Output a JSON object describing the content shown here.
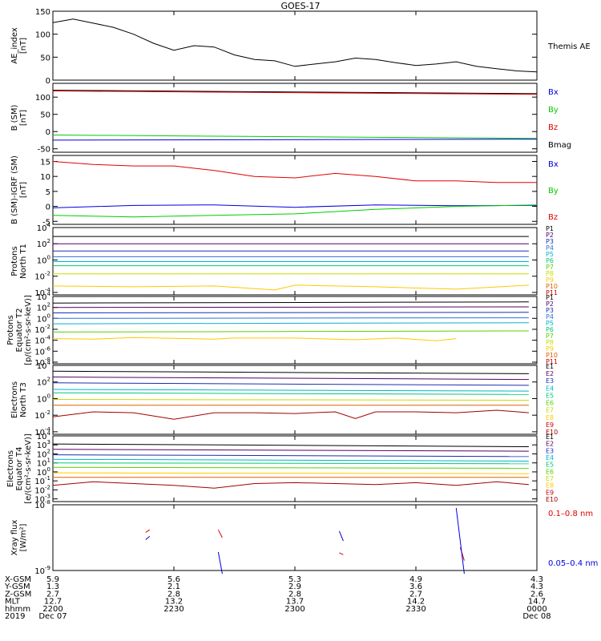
{
  "title": "GOES-17",
  "colors": {
    "black": "#000000",
    "red": "#e00000",
    "green": "#00cc00",
    "blue": "#0000dd",
    "p1": "#000000",
    "p2": "#55006a",
    "p3": "#1b2fb0",
    "p4": "#2f6fdc",
    "p5": "#00b4c8",
    "p6": "#00c878",
    "p7": "#55d200",
    "p8": "#c8dc00",
    "p9": "#ffc800",
    "p10": "#e06000",
    "p11": "#c80000",
    "e10": "#a00000"
  },
  "time_axis": {
    "start_hhmm": "2200",
    "end_hhmm": "0000",
    "rows": [
      {
        "label": "X-GSM",
        "values": [
          "5.9",
          "5.6",
          "5.3",
          "4.9",
          "4.3"
        ]
      },
      {
        "label": "Y-GSM",
        "values": [
          "1.3",
          "2.1",
          "2.9",
          "3.6",
          "4.3"
        ]
      },
      {
        "label": "Z-GSM",
        "values": [
          "2.7",
          "2.8",
          "2.8",
          "2.7",
          "2.6"
        ]
      },
      {
        "label": "MLT",
        "values": [
          "12.7",
          "13.2",
          "13.7",
          "14.2",
          "14.7"
        ]
      },
      {
        "label": "hhmm",
        "values": [
          "2200",
          "2230",
          "2300",
          "2330",
          "0000"
        ]
      },
      {
        "label": "2019",
        "values": [
          "Dec 07",
          "",
          "",
          "",
          "Dec 08"
        ]
      }
    ]
  },
  "chart_data": [
    {
      "id": "ae",
      "type": "line",
      "ylabel": "AE_index\n[nT]",
      "ylim": [
        0,
        150
      ],
      "yticks": [
        "0",
        "50",
        "100",
        "150"
      ],
      "legend": [
        {
          "text": "Themis AE",
          "color": "#000000"
        }
      ],
      "series": [
        {
          "name": "Themis AE",
          "color": "#000000",
          "x": [
            0,
            5,
            10,
            15,
            20,
            25,
            30,
            35,
            40,
            45,
            50,
            55,
            60,
            65,
            70,
            75,
            80,
            85,
            90,
            95,
            100,
            105,
            110,
            115,
            120
          ],
          "y": [
            125,
            133,
            124,
            115,
            100,
            80,
            65,
            75,
            72,
            55,
            45,
            42,
            30,
            35,
            40,
            48,
            45,
            38,
            32,
            35,
            40,
            30,
            25,
            20,
            18
          ]
        }
      ]
    },
    {
      "id": "bsm",
      "type": "line",
      "ylabel": "B (SM)\n[nT]",
      "ylim": [
        -60,
        140
      ],
      "yticks": [
        "-50",
        "0",
        "50",
        "100"
      ],
      "legend": [
        {
          "text": "Bx",
          "color": "#0000dd"
        },
        {
          "text": "By",
          "color": "#00cc00"
        },
        {
          "text": "Bz",
          "color": "#e00000"
        },
        {
          "text": "Bmag",
          "color": "#000000"
        }
      ],
      "series": [
        {
          "name": "Bmag",
          "color": "#000000",
          "x": [
            0,
            120
          ],
          "y": [
            120,
            110
          ]
        },
        {
          "name": "Bz",
          "color": "#e00000",
          "x": [
            0,
            120
          ],
          "y": [
            118,
            108
          ]
        },
        {
          "name": "By",
          "color": "#00cc00",
          "x": [
            0,
            120
          ],
          "y": [
            -10,
            -20
          ]
        },
        {
          "name": "Bx",
          "color": "#0000dd",
          "x": [
            0,
            120
          ],
          "y": [
            -25,
            -22
          ]
        }
      ]
    },
    {
      "id": "bdiff",
      "type": "line",
      "ylabel": "B (SM)-IGRF (SM)\n[nT]",
      "ylim": [
        -6,
        17
      ],
      "yticks": [
        "-5",
        "0",
        "5",
        "10",
        "15"
      ],
      "legend": [
        {
          "text": "Bx",
          "color": "#0000dd"
        },
        {
          "text": "By",
          "color": "#00cc00"
        },
        {
          "text": "Bz",
          "color": "#e00000"
        }
      ],
      "series": [
        {
          "name": "Bz",
          "color": "#e00000",
          "x": [
            0,
            10,
            20,
            30,
            40,
            50,
            60,
            70,
            80,
            90,
            100,
            110,
            120
          ],
          "y": [
            15,
            14,
            13.5,
            13.5,
            12,
            10,
            9.5,
            11,
            10,
            8.5,
            8.5,
            8,
            8
          ]
        },
        {
          "name": "Bx",
          "color": "#0000dd",
          "x": [
            0,
            20,
            40,
            60,
            80,
            100,
            120
          ],
          "y": [
            -0.5,
            0.3,
            0.5,
            -0.3,
            0.5,
            0.2,
            0.3
          ]
        },
        {
          "name": "By",
          "color": "#00cc00",
          "x": [
            0,
            20,
            40,
            60,
            80,
            100,
            120
          ],
          "y": [
            -3,
            -3.5,
            -3,
            -2.5,
            -1,
            0,
            0.5
          ]
        }
      ]
    },
    {
      "id": "p_north",
      "type": "line",
      "log": true,
      "ylabel": "Protons\nNorth T1",
      "ylim": [
        -4.3,
        4
      ],
      "yticks": [
        "10^4",
        "10^2",
        "10^0",
        "10^-2",
        "10^-4"
      ],
      "legend": [
        {
          "text": "P1",
          "color": "#000000"
        },
        {
          "text": "P2",
          "color": "#55006a"
        },
        {
          "text": "P3",
          "color": "#1b2fb0"
        },
        {
          "text": "P4",
          "color": "#2f6fdc"
        },
        {
          "text": "P5",
          "color": "#00b4c8"
        },
        {
          "text": "P6",
          "color": "#00c878"
        },
        {
          "text": "P7",
          "color": "#55d200"
        },
        {
          "text": "P8",
          "color": "#c8dc00"
        },
        {
          "text": "P9",
          "color": "#ffc800"
        },
        {
          "text": "P10",
          "color": "#e06000"
        },
        {
          "text": "P11",
          "color": "#c80000"
        }
      ],
      "series": [
        {
          "color": "#000000",
          "x": [
            0,
            118
          ],
          "y": [
            2.9,
            2.9
          ]
        },
        {
          "color": "#55006a",
          "x": [
            0,
            118
          ],
          "y": [
            2.0,
            2.0
          ]
        },
        {
          "color": "#1b2fb0",
          "x": [
            0,
            118
          ],
          "y": [
            1.1,
            1.1
          ]
        },
        {
          "color": "#2f6fdc",
          "x": [
            0,
            118
          ],
          "y": [
            0.4,
            0.4
          ]
        },
        {
          "color": "#00b4c8",
          "x": [
            0,
            118
          ],
          "y": [
            -0.2,
            -0.2
          ]
        },
        {
          "color": "#00c878",
          "x": [
            0,
            118
          ],
          "y": [
            -0.7,
            -0.7
          ]
        },
        {
          "color": "#c8dc00",
          "x": [
            0,
            118
          ],
          "y": [
            -1.7,
            -1.7
          ]
        },
        {
          "color": "#ffc800",
          "x": [
            0,
            20,
            40,
            55,
            60,
            80,
            100,
            118
          ],
          "y": [
            -3.2,
            -3.3,
            -3.2,
            -3.7,
            -3.1,
            -3.3,
            -3.6,
            -3.1
          ]
        }
      ]
    },
    {
      "id": "p_eq",
      "type": "line",
      "log": true,
      "ylabel": "Protons\nEquator T2\n[p/(cm²-s-sr-keV)]",
      "ylim": [
        -8.3,
        4
      ],
      "yticks": [
        "10^4",
        "10^2",
        "10^0",
        "10^-2",
        "10^-4",
        "10^-6",
        "10^-8"
      ],
      "legend": [
        {
          "text": "P1",
          "color": "#000000"
        },
        {
          "text": "P2",
          "color": "#55006a"
        },
        {
          "text": "P3",
          "color": "#1b2fb0"
        },
        {
          "text": "P4",
          "color": "#2f6fdc"
        },
        {
          "text": "P5",
          "color": "#00b4c8"
        },
        {
          "text": "P6",
          "color": "#00c878"
        },
        {
          "text": "P7",
          "color": "#55d200"
        },
        {
          "text": "P8",
          "color": "#c8dc00"
        },
        {
          "text": "P9",
          "color": "#ffc800"
        },
        {
          "text": "P10",
          "color": "#e06000"
        },
        {
          "text": "P11",
          "color": "#c80000"
        }
      ],
      "series": [
        {
          "color": "#000000",
          "x": [
            0,
            118
          ],
          "y": [
            2.8,
            3.0
          ]
        },
        {
          "color": "#55006a",
          "x": [
            0,
            118
          ],
          "y": [
            2.0,
            2.1
          ]
        },
        {
          "color": "#1b2fb0",
          "x": [
            0,
            118
          ],
          "y": [
            1.0,
            1.1
          ]
        },
        {
          "color": "#2f6fdc",
          "x": [
            0,
            118
          ],
          "y": [
            0.0,
            0.1
          ]
        },
        {
          "color": "#00b4c8",
          "x": [
            0,
            118
          ],
          "y": [
            -1.0,
            -0.8
          ]
        },
        {
          "color": "#55d200",
          "x": [
            0,
            118
          ],
          "y": [
            -2.5,
            -2.3
          ]
        },
        {
          "color": "#ffc800",
          "x": [
            0,
            10,
            20,
            40,
            45,
            60,
            75,
            85,
            95,
            100
          ],
          "y": [
            -3.7,
            -3.8,
            -3.5,
            -3.8,
            -3.6,
            -3.6,
            -3.9,
            -3.6,
            -4.1,
            -3.7
          ]
        }
      ]
    },
    {
      "id": "e_north",
      "type": "line",
      "log": true,
      "ylabel": "Electrons\nNorth T3",
      "ylim": [
        -4.3,
        4
      ],
      "yticks": [
        "10^4",
        "10^2",
        "10^0",
        "10^-2",
        "10^-4"
      ],
      "legend": [
        {
          "text": "E1",
          "color": "#000000"
        },
        {
          "text": "E2",
          "color": "#55006a"
        },
        {
          "text": "E3",
          "color": "#1b2fb0"
        },
        {
          "text": "E4",
          "color": "#00b4c8"
        },
        {
          "text": "E5",
          "color": "#00c878"
        },
        {
          "text": "E6",
          "color": "#55d200"
        },
        {
          "text": "E7",
          "color": "#c8dc00"
        },
        {
          "text": "E8",
          "color": "#ffc800"
        },
        {
          "text": "E9",
          "color": "#c80000"
        },
        {
          "text": "E10",
          "color": "#a00000"
        }
      ],
      "series": [
        {
          "color": "#000000",
          "x": [
            0,
            118
          ],
          "y": [
            3.3,
            3.0
          ]
        },
        {
          "color": "#55006a",
          "x": [
            0,
            118
          ],
          "y": [
            2.6,
            2.3
          ]
        },
        {
          "color": "#1b2fb0",
          "x": [
            0,
            118
          ],
          "y": [
            1.9,
            1.6
          ]
        },
        {
          "color": "#00b4c8",
          "x": [
            0,
            118
          ],
          "y": [
            1.1,
            0.9
          ]
        },
        {
          "color": "#00c878",
          "x": [
            0,
            118
          ],
          "y": [
            0.7,
            0.5
          ]
        },
        {
          "color": "#c8dc00",
          "x": [
            0,
            118
          ],
          "y": [
            -0.1,
            -0.2
          ]
        },
        {
          "color": "#e06000",
          "x": [
            0,
            118
          ],
          "y": [
            -0.8,
            -0.8
          ]
        },
        {
          "color": "#a00000",
          "x": [
            0,
            10,
            20,
            30,
            40,
            50,
            60,
            70,
            75,
            80,
            90,
            100,
            110,
            118
          ],
          "y": [
            -2.2,
            -1.6,
            -1.7,
            -2.5,
            -1.7,
            -1.7,
            -1.8,
            -1.6,
            -2.4,
            -1.6,
            -1.6,
            -1.7,
            -1.4,
            -1.7
          ]
        }
      ]
    },
    {
      "id": "e_eq",
      "type": "line",
      "log": true,
      "ylabel": "Electrons\nEquator T4\n[e/(cm²-s-sr-keV)]",
      "ylim": [
        -3.3,
        4
      ],
      "yticks": [
        "10^4",
        "10^3",
        "10^2",
        "10^1",
        "10^0",
        "10^-1",
        "10^-2",
        "10^-3"
      ],
      "legend": [
        {
          "text": "E1",
          "color": "#000000"
        },
        {
          "text": "E2",
          "color": "#55006a"
        },
        {
          "text": "E3",
          "color": "#1b2fb0"
        },
        {
          "text": "E4",
          "color": "#00b4c8"
        },
        {
          "text": "E5",
          "color": "#00c878"
        },
        {
          "text": "E6",
          "color": "#55d200"
        },
        {
          "text": "E7",
          "color": "#c8dc00"
        },
        {
          "text": "E8",
          "color": "#ffc800"
        },
        {
          "text": "E9",
          "color": "#c80000"
        },
        {
          "text": "E10",
          "color": "#a00000"
        }
      ],
      "series": [
        {
          "color": "#000000",
          "x": [
            0,
            118
          ],
          "y": [
            3.1,
            2.8
          ]
        },
        {
          "color": "#55006a",
          "x": [
            0,
            118
          ],
          "y": [
            2.5,
            2.3
          ]
        },
        {
          "color": "#1b2fb0",
          "x": [
            0,
            118
          ],
          "y": [
            1.9,
            1.7
          ]
        },
        {
          "color": "#00b4c8",
          "x": [
            0,
            118
          ],
          "y": [
            1.4,
            1.2
          ]
        },
        {
          "color": "#00c878",
          "x": [
            0,
            118
          ],
          "y": [
            1.0,
            0.9
          ]
        },
        {
          "color": "#55d200",
          "x": [
            0,
            118
          ],
          "y": [
            0.5,
            0.4
          ]
        },
        {
          "color": "#ffc800",
          "x": [
            0,
            118
          ],
          "y": [
            -0.1,
            -0.2
          ]
        },
        {
          "color": "#e06000",
          "x": [
            0,
            118
          ],
          "y": [
            -0.6,
            -0.6
          ]
        },
        {
          "color": "#a00000",
          "x": [
            0,
            10,
            20,
            30,
            40,
            50,
            60,
            70,
            80,
            90,
            100,
            110,
            118
          ],
          "y": [
            -1.5,
            -1.1,
            -1.3,
            -1.5,
            -1.8,
            -1.3,
            -1.2,
            -1.3,
            -1.4,
            -1.2,
            -1.5,
            -1.1,
            -1.4
          ]
        }
      ]
    },
    {
      "id": "xray",
      "type": "line",
      "log": true,
      "ylabel": "Xray flux\n[W/m²]",
      "ylim": [
        -9,
        -8
      ],
      "yticks": [
        "10^-8",
        "10^-9"
      ],
      "legend": [
        {
          "text": "0.1–0.8 nm",
          "color": "#e00000"
        },
        {
          "text": "0.05–0.4 nm",
          "color": "#0000dd"
        }
      ],
      "series": [
        {
          "color": "#e00000",
          "x": [
            23,
            24
          ],
          "y": [
            -8.42,
            -8.38
          ]
        },
        {
          "color": "#e00000",
          "x": [
            41,
            42
          ],
          "y": [
            -8.38,
            -8.5
          ]
        },
        {
          "color": "#e00000",
          "x": [
            71,
            72
          ],
          "y": [
            -8.73,
            -8.76
          ]
        },
        {
          "color": "#e00000",
          "x": [
            101,
            102
          ],
          "y": [
            -8.65,
            -8.85
          ]
        },
        {
          "color": "#0000dd",
          "x": [
            23,
            24
          ],
          "y": [
            -8.53,
            -8.48
          ]
        },
        {
          "color": "#0000dd",
          "x": [
            41,
            42
          ],
          "y": [
            -8.72,
            -9.05
          ]
        },
        {
          "color": "#0000dd",
          "x": [
            71,
            72
          ],
          "y": [
            -8.4,
            -8.55
          ]
        },
        {
          "color": "#0000dd",
          "x": [
            100,
            102
          ],
          "y": [
            -8.05,
            -9.05
          ]
        }
      ]
    }
  ]
}
